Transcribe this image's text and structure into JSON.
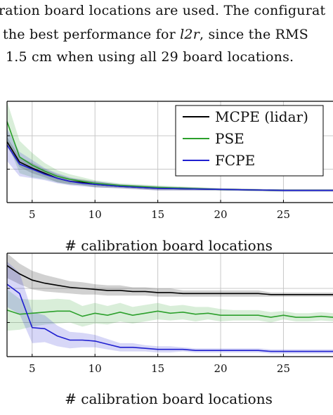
{
  "text_block": {
    "line1": "ration board locations are used. The configurat",
    "line2": "the best performance for l2r, since the RMS",
    "line3": "1.5 cm when using all 29 board locations."
  },
  "chart_data": [
    {
      "type": "line",
      "xlabel": "# calibration board locations",
      "xlim": [
        3,
        29
      ],
      "xticks": [
        5,
        10,
        15,
        20,
        25
      ],
      "ylim": [
        0,
        1
      ],
      "grid": true,
      "legend": "top-right",
      "series": [
        {
          "name": "MCPE (lidar)",
          "color": "#000000",
          "x": [
            3,
            4,
            5,
            6,
            7,
            8,
            9,
            10,
            12,
            15,
            20,
            25,
            29
          ],
          "y": [
            0.6,
            0.4,
            0.34,
            0.29,
            0.24,
            0.21,
            0.2,
            0.18,
            0.16,
            0.14,
            0.13,
            0.12,
            0.12
          ],
          "band": [
            0.05,
            0.05,
            0.05,
            0.04,
            0.04,
            0.03,
            0.03,
            0.03,
            0.02,
            0.02,
            0.01,
            0.01,
            0.01
          ]
        },
        {
          "name": "PSE",
          "color": "#2ca02c",
          "x": [
            3,
            4,
            5,
            6,
            7,
            8,
            9,
            10,
            12,
            15,
            20,
            25,
            29
          ],
          "y": [
            0.8,
            0.45,
            0.37,
            0.31,
            0.26,
            0.23,
            0.21,
            0.19,
            0.17,
            0.15,
            0.13,
            0.12,
            0.12
          ],
          "band": [
            0.2,
            0.16,
            0.12,
            0.08,
            0.06,
            0.05,
            0.04,
            0.03,
            0.02,
            0.02,
            0.01,
            0.01,
            0.01
          ]
        },
        {
          "name": "FCPE",
          "color": "#1f1fd0",
          "x": [
            3,
            4,
            5,
            6,
            7,
            8,
            9,
            10,
            12,
            15,
            20,
            25,
            29
          ],
          "y": [
            0.57,
            0.38,
            0.33,
            0.28,
            0.24,
            0.21,
            0.19,
            0.18,
            0.16,
            0.14,
            0.13,
            0.12,
            0.12
          ],
          "band": [
            0.16,
            0.12,
            0.09,
            0.06,
            0.05,
            0.04,
            0.03,
            0.03,
            0.02,
            0.02,
            0.01,
            0.01,
            0.01
          ]
        }
      ]
    },
    {
      "type": "line",
      "xlabel": "# calibration board locations",
      "xlim": [
        3,
        29
      ],
      "xticks": [
        5,
        10,
        15,
        20,
        25
      ],
      "ylim": [
        0,
        1
      ],
      "grid": true,
      "series": [
        {
          "name": "MCPE (lidar)",
          "color": "#000000",
          "x": [
            3,
            4,
            5,
            6,
            7,
            8,
            9,
            10,
            11,
            12,
            13,
            14,
            15,
            16,
            17,
            18,
            19,
            20,
            21,
            22,
            23,
            24,
            25,
            26,
            27,
            28,
            29
          ],
          "y": [
            0.88,
            0.8,
            0.74,
            0.71,
            0.69,
            0.67,
            0.66,
            0.65,
            0.64,
            0.64,
            0.63,
            0.63,
            0.62,
            0.62,
            0.61,
            0.61,
            0.61,
            0.61,
            0.61,
            0.61,
            0.61,
            0.6,
            0.6,
            0.6,
            0.6,
            0.6,
            0.6
          ],
          "band": [
            0.12,
            0.1,
            0.09,
            0.08,
            0.07,
            0.06,
            0.06,
            0.05,
            0.05,
            0.05,
            0.04,
            0.04,
            0.04,
            0.04,
            0.03,
            0.03,
            0.03,
            0.03,
            0.03,
            0.03,
            0.03,
            0.02,
            0.02,
            0.02,
            0.02,
            0.02,
            0.02
          ]
        },
        {
          "name": "PSE",
          "color": "#2ca02c",
          "x": [
            3,
            4,
            5,
            6,
            7,
            8,
            9,
            10,
            11,
            12,
            13,
            14,
            15,
            16,
            17,
            18,
            19,
            20,
            21,
            22,
            23,
            24,
            25,
            26,
            27,
            28,
            29
          ],
          "y": [
            0.45,
            0.41,
            0.42,
            0.43,
            0.44,
            0.44,
            0.39,
            0.42,
            0.4,
            0.43,
            0.4,
            0.42,
            0.44,
            0.42,
            0.43,
            0.41,
            0.42,
            0.4,
            0.4,
            0.4,
            0.4,
            0.38,
            0.4,
            0.38,
            0.38,
            0.39,
            0.38
          ],
          "band": [
            0.2,
            0.15,
            0.13,
            0.12,
            0.12,
            0.11,
            0.1,
            0.1,
            0.09,
            0.09,
            0.08,
            0.08,
            0.08,
            0.07,
            0.07,
            0.07,
            0.06,
            0.06,
            0.05,
            0.05,
            0.05,
            0.05,
            0.04,
            0.04,
            0.04,
            0.04,
            0.04
          ]
        },
        {
          "name": "FCPE",
          "color": "#1f1fd0",
          "x": [
            3,
            4,
            5,
            6,
            7,
            8,
            9,
            10,
            11,
            12,
            13,
            14,
            15,
            16,
            17,
            18,
            19,
            20,
            21,
            22,
            23,
            24,
            25,
            26,
            27,
            28,
            29
          ],
          "y": [
            0.7,
            0.61,
            0.28,
            0.27,
            0.2,
            0.16,
            0.16,
            0.15,
            0.12,
            0.09,
            0.09,
            0.08,
            0.07,
            0.07,
            0.07,
            0.06,
            0.06,
            0.06,
            0.06,
            0.06,
            0.06,
            0.05,
            0.05,
            0.05,
            0.05,
            0.05,
            0.05
          ],
          "band": [
            0.22,
            0.2,
            0.15,
            0.13,
            0.1,
            0.08,
            0.07,
            0.06,
            0.05,
            0.04,
            0.04,
            0.03,
            0.03,
            0.03,
            0.02,
            0.02,
            0.02,
            0.02,
            0.02,
            0.02,
            0.02,
            0.02,
            0.02,
            0.02,
            0.02,
            0.02,
            0.02
          ]
        }
      ]
    }
  ]
}
